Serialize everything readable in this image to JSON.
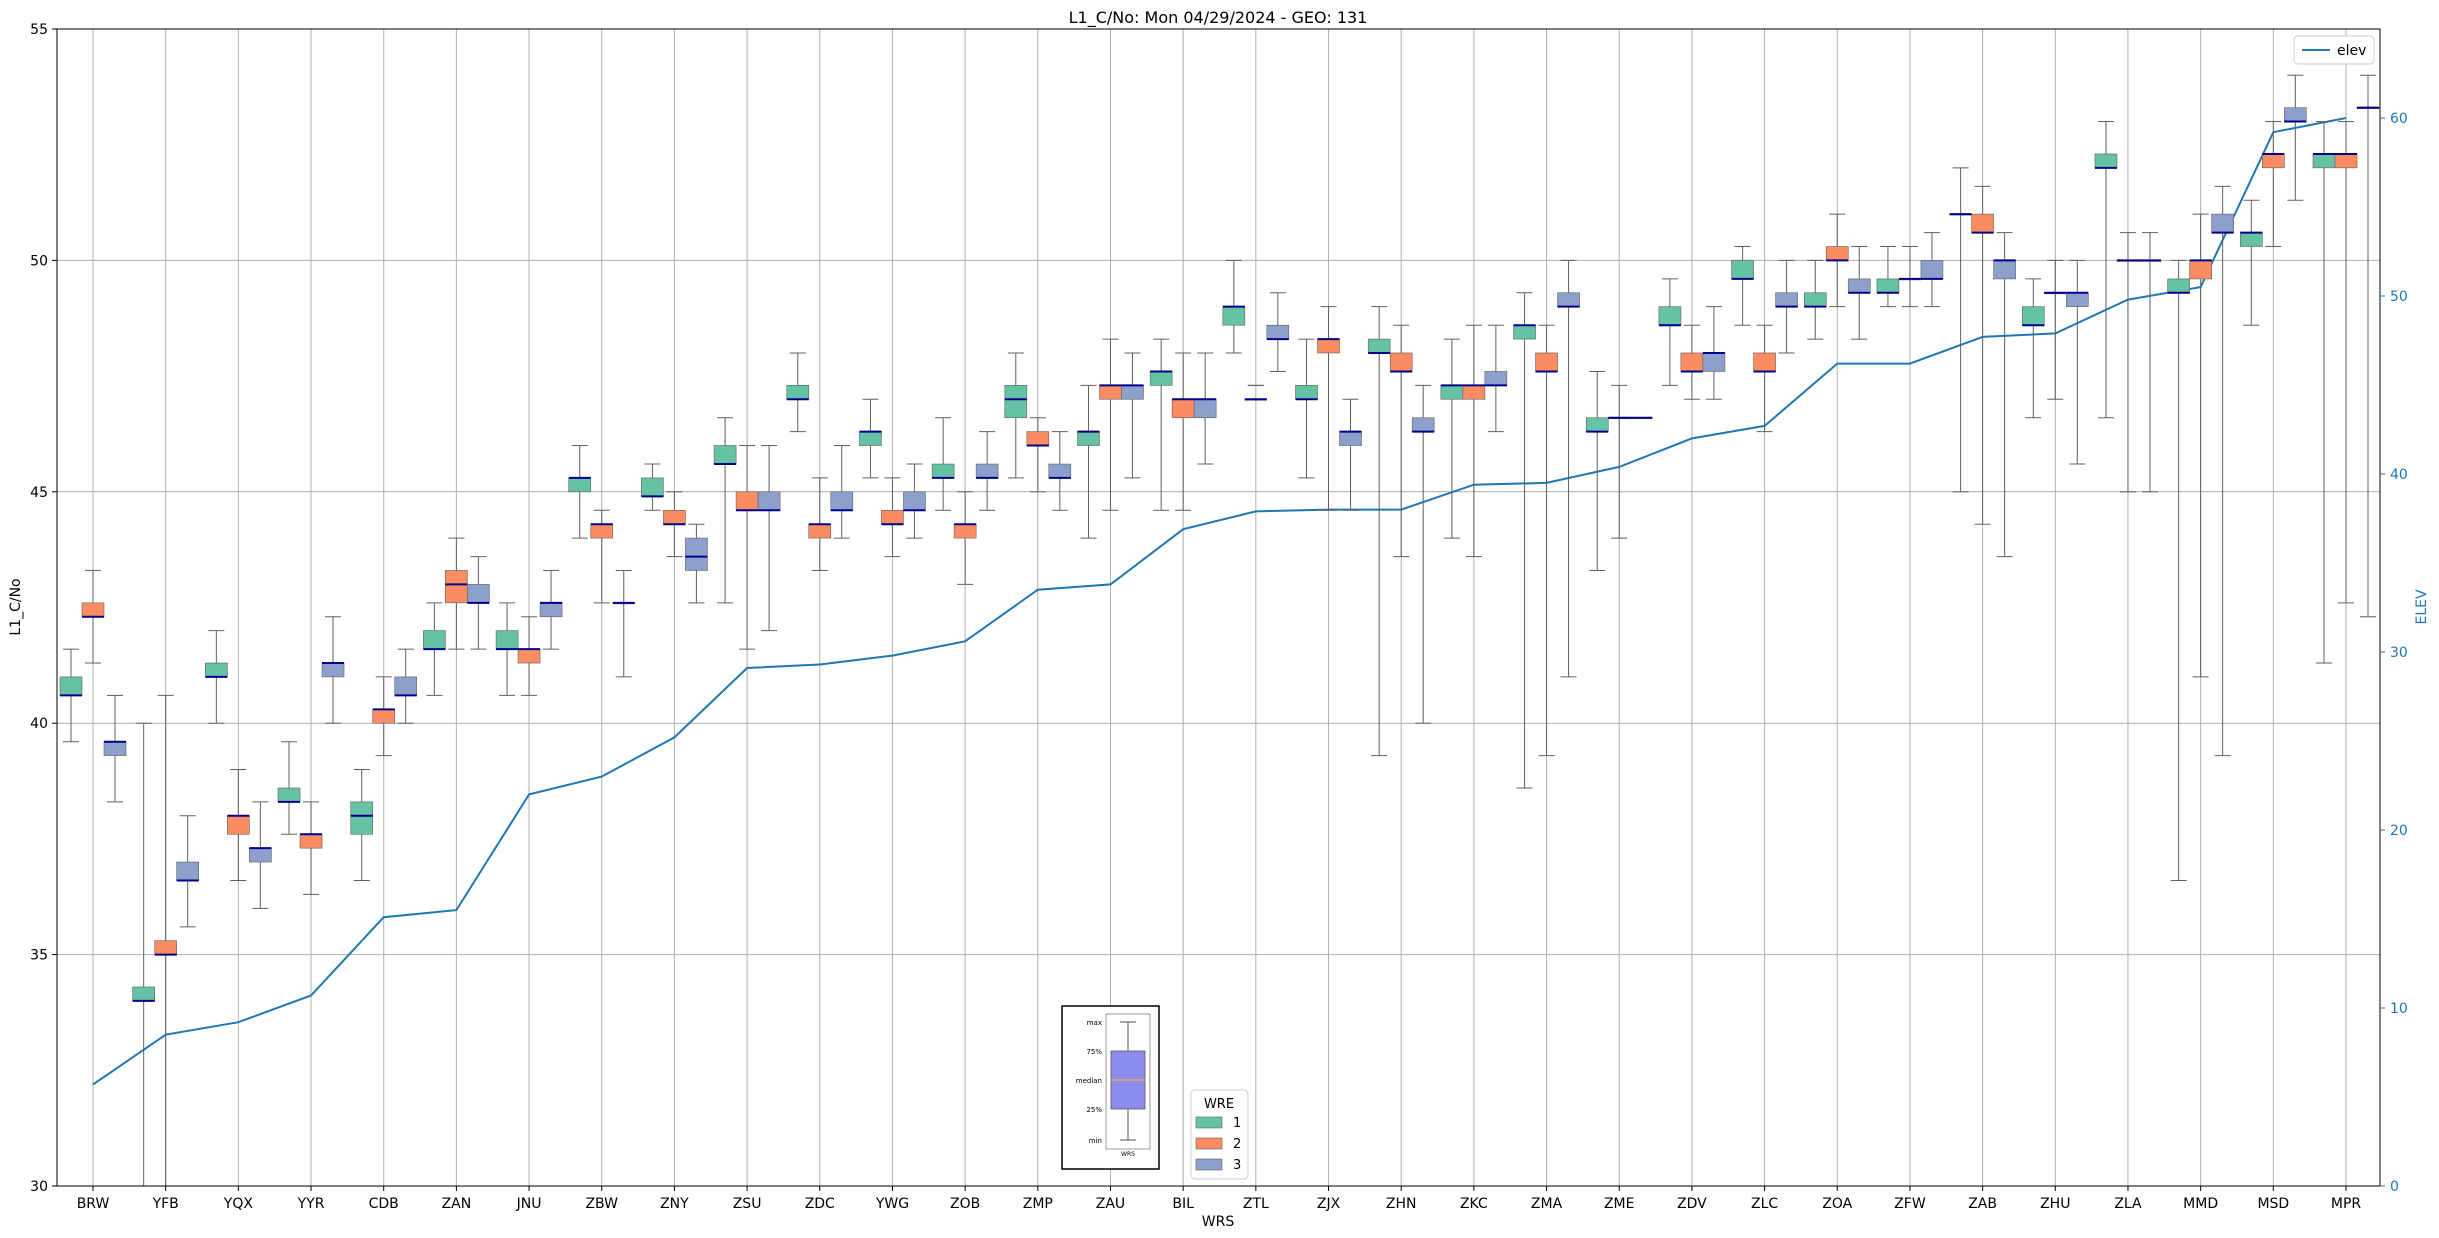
{
  "chart_data": {
    "type": "box",
    "title": "L1_C/No: Mon 04/29/2024 - GEO: 131",
    "xlabel": "WRS",
    "ylabel": "L1_C/No",
    "y2label": "ELEV",
    "ylim": [
      30,
      55
    ],
    "y2lim": [
      0,
      65
    ],
    "yticks": [
      30,
      35,
      40,
      45,
      50,
      55
    ],
    "y2ticks": [
      0,
      10,
      20,
      30,
      40,
      50,
      60
    ],
    "grid": true,
    "categories": [
      "BRW",
      "YFB",
      "YQX",
      "YYR",
      "CDB",
      "ZAN",
      "JNU",
      "ZBW",
      "ZNY",
      "ZSU",
      "ZDC",
      "YWG",
      "ZOB",
      "ZMP",
      "ZAU",
      "BIL",
      "ZTL",
      "ZJX",
      "ZHN",
      "ZKC",
      "ZMA",
      "ZME",
      "ZDV",
      "ZLC",
      "ZOA",
      "ZFW",
      "ZAB",
      "ZHU",
      "ZLA",
      "MMD",
      "MSD",
      "MPR"
    ],
    "legend_title": "WRE",
    "wre_colors": {
      "1": "#66c2a5",
      "2": "#fc8d62",
      "3": "#8da0cb"
    },
    "median_color": "#00008b",
    "elev_color": "#1f77b4",
    "elev_legend": "elev",
    "legend_placement": "upper-right",
    "wre_legend_placement": "bottom-center",
    "box_series": [
      {
        "wre": "1",
        "boxes": [
          [
            0,
            39.6,
            40.6,
            40.6,
            41.0,
            41.6
          ],
          [
            1,
            30.0,
            34.0,
            34.0,
            34.3,
            40.0
          ],
          [
            2,
            40.0,
            41.0,
            41.0,
            41.3,
            42.0
          ],
          [
            3,
            37.6,
            38.3,
            38.3,
            38.6,
            39.6
          ],
          [
            4,
            36.6,
            37.6,
            38.0,
            38.3,
            39.0
          ],
          [
            5,
            40.6,
            41.6,
            41.6,
            42.0,
            42.6
          ],
          [
            6,
            40.6,
            41.6,
            41.6,
            42.0,
            42.6
          ],
          [
            7,
            44.0,
            45.0,
            45.3,
            45.3,
            46.0
          ],
          [
            8,
            44.6,
            44.9,
            44.9,
            45.3,
            45.6
          ],
          [
            9,
            42.6,
            45.6,
            45.6,
            46.0,
            46.6
          ],
          [
            10,
            46.3,
            47.0,
            47.0,
            47.3,
            48.0
          ],
          [
            11,
            45.3,
            46.0,
            46.3,
            46.3,
            47.0
          ],
          [
            12,
            44.6,
            45.3,
            45.3,
            45.6,
            46.6
          ],
          [
            13,
            45.3,
            46.6,
            47.0,
            47.3,
            48.0
          ],
          [
            14,
            44.0,
            46.0,
            46.3,
            46.3,
            47.3
          ],
          [
            15,
            44.6,
            47.3,
            47.6,
            47.6,
            48.3
          ],
          [
            16,
            48.0,
            48.6,
            49.0,
            49.0,
            50.0
          ],
          [
            17,
            45.3,
            47.0,
            47.0,
            47.3,
            48.3
          ],
          [
            18,
            39.3,
            48.0,
            48.0,
            48.3,
            49.0
          ],
          [
            19,
            44.0,
            47.0,
            47.3,
            47.3,
            48.3
          ],
          [
            20,
            38.6,
            48.3,
            48.6,
            48.6,
            49.3
          ],
          [
            21,
            43.3,
            46.3,
            46.3,
            46.6,
            47.6
          ],
          [
            22,
            47.3,
            48.6,
            48.6,
            49.0,
            49.6
          ],
          [
            23,
            48.6,
            49.6,
            49.6,
            50.0,
            50.3
          ],
          [
            24,
            48.3,
            49.0,
            49.0,
            49.3,
            50.0
          ],
          [
            25,
            49.0,
            49.3,
            49.3,
            49.6,
            50.3
          ],
          [
            26,
            45.0,
            51.0,
            51.0,
            51.0,
            52.0
          ],
          [
            27,
            46.6,
            48.6,
            48.6,
            49.0,
            49.6
          ],
          [
            28,
            46.6,
            52.0,
            52.0,
            52.3,
            53.0
          ],
          [
            29,
            36.6,
            49.3,
            49.3,
            49.6,
            50.0
          ],
          [
            30,
            48.6,
            50.3,
            50.6,
            50.6,
            51.3
          ],
          [
            31,
            41.3,
            52.0,
            52.3,
            52.3,
            53.0
          ]
        ]
      },
      {
        "wre": "2",
        "boxes": [
          [
            0,
            41.3,
            42.3,
            42.3,
            42.6,
            43.3
          ],
          [
            1,
            30.0,
            35.0,
            35.0,
            35.3,
            40.6
          ],
          [
            2,
            36.6,
            37.6,
            38.0,
            38.0,
            39.0
          ],
          [
            3,
            36.3,
            37.3,
            37.6,
            37.6,
            38.3
          ],
          [
            4,
            39.3,
            40.0,
            40.3,
            40.3,
            41.0
          ],
          [
            5,
            41.6,
            42.6,
            43.0,
            43.3,
            44.0
          ],
          [
            6,
            40.6,
            41.3,
            41.6,
            41.6,
            42.3
          ],
          [
            7,
            42.6,
            44.0,
            44.3,
            44.3,
            44.6
          ],
          [
            8,
            43.6,
            44.3,
            44.3,
            44.6,
            45.0
          ],
          [
            9,
            41.6,
            44.6,
            44.6,
            45.0,
            46.0
          ],
          [
            10,
            43.3,
            44.0,
            44.3,
            44.3,
            45.3
          ],
          [
            11,
            43.6,
            44.3,
            44.3,
            44.6,
            45.3
          ],
          [
            12,
            43.0,
            44.0,
            44.3,
            44.3,
            45.0
          ],
          [
            13,
            45.0,
            46.0,
            46.0,
            46.3,
            46.6
          ],
          [
            14,
            44.6,
            47.0,
            47.3,
            47.3,
            48.3
          ],
          [
            15,
            44.6,
            46.6,
            47.0,
            47.0,
            48.0
          ],
          [
            16,
            47.3,
            47.0,
            47.0,
            47.0,
            47.3
          ],
          [
            17,
            44.6,
            48.0,
            48.3,
            48.3,
            49.0
          ],
          [
            18,
            43.6,
            47.6,
            47.6,
            48.0,
            48.6
          ],
          [
            19,
            43.6,
            47.0,
            47.3,
            47.3,
            48.6
          ],
          [
            20,
            39.3,
            47.6,
            47.6,
            48.0,
            48.6
          ],
          [
            21,
            44.0,
            46.6,
            46.6,
            46.6,
            47.3
          ],
          [
            22,
            47.0,
            47.6,
            47.6,
            48.0,
            48.6
          ],
          [
            23,
            46.3,
            47.6,
            47.6,
            48.0,
            48.6
          ],
          [
            24,
            49.0,
            50.0,
            50.0,
            50.3,
            51.0
          ],
          [
            25,
            49.0,
            49.6,
            49.6,
            49.6,
            50.3
          ],
          [
            26,
            44.3,
            50.6,
            50.6,
            51.0,
            51.6
          ],
          [
            27,
            47.0,
            49.3,
            49.3,
            49.3,
            50.0
          ],
          [
            28,
            45.0,
            50.0,
            50.0,
            50.0,
            50.6
          ],
          [
            29,
            41.0,
            49.6,
            50.0,
            50.0,
            51.0
          ],
          [
            30,
            50.3,
            52.0,
            52.3,
            52.3,
            53.0
          ],
          [
            31,
            42.6,
            52.0,
            52.3,
            52.3,
            53.0
          ]
        ]
      },
      {
        "wre": "3",
        "boxes": [
          [
            0,
            38.3,
            39.3,
            39.6,
            39.6,
            40.6
          ],
          [
            1,
            35.6,
            36.6,
            36.6,
            37.0,
            38.0
          ],
          [
            2,
            36.0,
            37.0,
            37.3,
            37.3,
            38.3
          ],
          [
            3,
            40.0,
            41.0,
            41.3,
            41.3,
            42.3
          ],
          [
            4,
            40.0,
            40.6,
            40.6,
            41.0,
            41.6
          ],
          [
            5,
            41.6,
            42.6,
            42.6,
            43.0,
            43.6
          ],
          [
            6,
            41.6,
            42.3,
            42.6,
            42.6,
            43.3
          ],
          [
            7,
            41.0,
            42.6,
            42.6,
            42.6,
            43.3
          ],
          [
            8,
            42.6,
            43.3,
            43.6,
            44.0,
            44.3
          ],
          [
            9,
            42.0,
            44.6,
            44.6,
            45.0,
            46.0
          ],
          [
            10,
            44.0,
            44.6,
            44.6,
            45.0,
            46.0
          ],
          [
            11,
            44.0,
            44.6,
            44.6,
            45.0,
            45.6
          ],
          [
            12,
            44.6,
            45.3,
            45.3,
            45.6,
            46.3
          ],
          [
            13,
            44.6,
            45.3,
            45.3,
            45.6,
            46.3
          ],
          [
            14,
            45.3,
            47.0,
            47.3,
            47.3,
            48.0
          ],
          [
            15,
            45.6,
            46.6,
            47.0,
            47.0,
            48.0
          ],
          [
            16,
            47.6,
            48.3,
            48.3,
            48.6,
            49.3
          ],
          [
            17,
            44.6,
            46.0,
            46.3,
            46.3,
            47.0
          ],
          [
            18,
            40.0,
            46.3,
            46.3,
            46.6,
            47.3
          ],
          [
            19,
            46.3,
            47.3,
            47.3,
            47.6,
            48.6
          ],
          [
            20,
            41.0,
            49.0,
            49.0,
            49.3,
            50.0
          ],
          [
            21,
            46.6,
            46.6,
            46.6,
            46.6,
            46.6
          ],
          [
            22,
            47.0,
            47.6,
            48.0,
            48.0,
            49.0
          ],
          [
            23,
            48.0,
            49.0,
            49.0,
            49.3,
            50.0
          ],
          [
            24,
            48.3,
            49.3,
            49.3,
            49.6,
            50.3
          ],
          [
            25,
            49.0,
            49.6,
            49.6,
            50.0,
            50.6
          ],
          [
            26,
            43.6,
            49.6,
            50.0,
            50.0,
            50.6
          ],
          [
            27,
            45.6,
            49.0,
            49.3,
            49.3,
            50.0
          ],
          [
            28,
            45.0,
            50.0,
            50.0,
            50.0,
            50.6
          ],
          [
            29,
            39.3,
            50.6,
            50.6,
            51.0,
            51.6
          ],
          [
            30,
            51.3,
            53.0,
            53.0,
            53.3,
            54.0
          ],
          [
            31,
            42.3,
            53.3,
            53.3,
            53.3,
            54.0
          ]
        ]
      }
    ],
    "elev_values": [
      5.7,
      8.5,
      9.2,
      10.7,
      15.1,
      15.5,
      22.0,
      23.0,
      25.2,
      29.1,
      29.3,
      29.8,
      30.6,
      33.5,
      33.8,
      36.9,
      37.9,
      38.0,
      38.0,
      39.4,
      39.5,
      40.4,
      42.0,
      42.7,
      46.2,
      46.2,
      47.7,
      47.9,
      49.8,
      50.5,
      59.2,
      60.0
    ],
    "key": {
      "labels": [
        "max",
        "75%",
        "median",
        "25%",
        "min"
      ],
      "xtick": "WRS",
      "box_color": "#8c8cf0",
      "median_color": "#e8a060"
    }
  }
}
